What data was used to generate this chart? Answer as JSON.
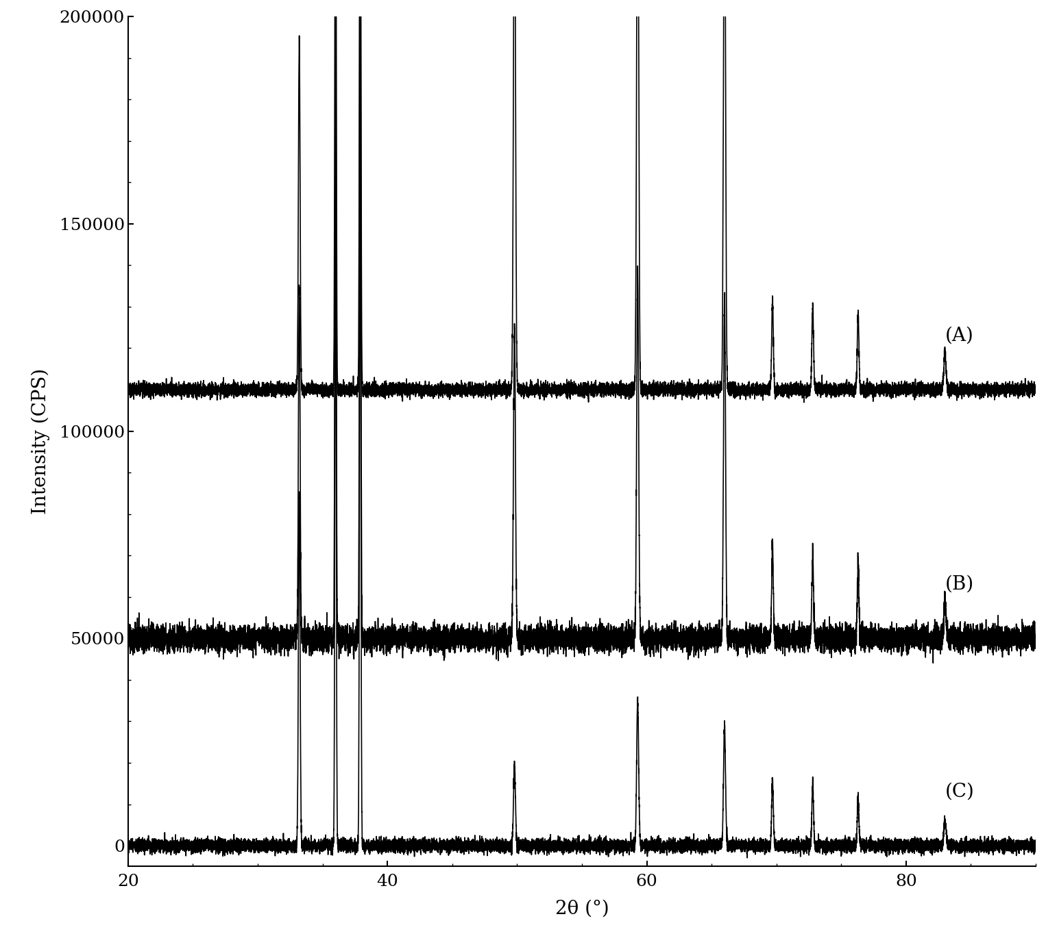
{
  "xlim": [
    20,
    90
  ],
  "ylim": [
    -5000,
    200000
  ],
  "xlabel": "2θ (°)",
  "ylabel": "Intensity (CPS)",
  "yticks": [
    0,
    50000,
    100000,
    150000,
    200000
  ],
  "ytick_labels": [
    "0",
    "50000",
    "100000",
    "150000",
    "200000"
  ],
  "xticks": [
    20,
    40,
    60,
    80
  ],
  "background_color": "#ffffff",
  "line_color": "#000000",
  "offsets": {
    "A": 110000,
    "B": 50000,
    "C": 0
  },
  "labels": {
    "A": "(A)",
    "B": "(B)",
    "C": "(C)"
  },
  "label_positions": {
    "A": [
      83,
      123000
    ],
    "B": [
      83,
      63000
    ],
    "C": [
      83,
      13000
    ]
  },
  "peaks": {
    "positions": [
      33.2,
      36.0,
      37.9,
      49.8,
      59.3,
      66.0,
      69.7,
      72.8,
      76.3,
      83.0
    ],
    "heights_A": [
      85000,
      163000,
      182000,
      133000,
      143000,
      135000,
      22000,
      20000,
      18000,
      9000
    ],
    "heights_B": [
      85000,
      163000,
      182000,
      75000,
      87000,
      82000,
      22000,
      20000,
      18000,
      9000
    ],
    "heights_C": [
      85000,
      163000,
      182000,
      19000,
      35000,
      29000,
      16000,
      15000,
      12000,
      6000
    ],
    "widths": [
      0.15,
      0.12,
      0.12,
      0.18,
      0.18,
      0.18,
      0.15,
      0.15,
      0.15,
      0.2
    ]
  },
  "noise_A": 800,
  "noise_B": 1500,
  "noise_C": 800,
  "figsize": [
    15.26,
    13.83
  ],
  "dpi": 100,
  "font_size_axis_label": 20,
  "font_size_tick": 18,
  "font_size_annotation": 20,
  "linewidth": 1.2
}
